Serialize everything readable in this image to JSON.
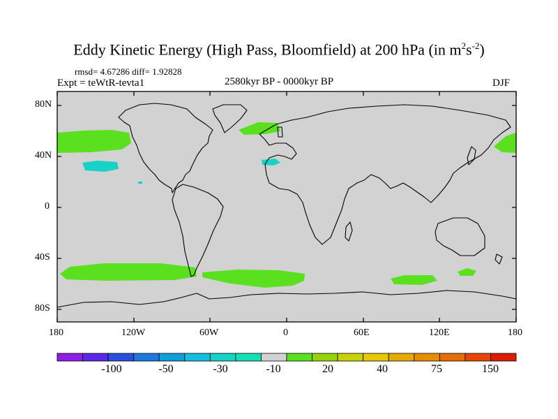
{
  "title_main": "Eddy Kinetic Energy (High Pass, Bloomfield) at 200 hPa (in m",
  "title_sup1": "2",
  "title_mid": "s",
  "title_sup2": "-2",
  "title_close": ")",
  "stats": "rmsd= 4.67286 diff= 1.92828",
  "experiment": "Expt = teWtR-tevta1",
  "period": "2580kyr BP - 0000kyr BP",
  "season": "DJF",
  "lat_labels": [
    "80N",
    "40N",
    "0",
    "40S",
    "80S"
  ],
  "lon_labels": [
    "180",
    "120W",
    "60W",
    "0",
    "60E",
    "120E",
    "180"
  ],
  "colorbar": {
    "colors": [
      "#8c1ee6",
      "#5a28e6",
      "#2850dc",
      "#1e78dc",
      "#0ea0dc",
      "#14bede",
      "#18d2c8",
      "#14deb4",
      "#d2d2d2",
      "#5ae01e",
      "#96d20a",
      "#c8d200",
      "#e6c800",
      "#e6aa00",
      "#e68c00",
      "#e66e00",
      "#e64600",
      "#dc1e00"
    ],
    "labels": [
      "-100",
      "-50",
      "-30",
      "-10",
      "20",
      "40",
      "75",
      "150"
    ]
  },
  "legend_colors": {
    "land_ocean": "#d2d2d2",
    "positive": "#5ae01e",
    "negative": "#18d2c8"
  }
}
